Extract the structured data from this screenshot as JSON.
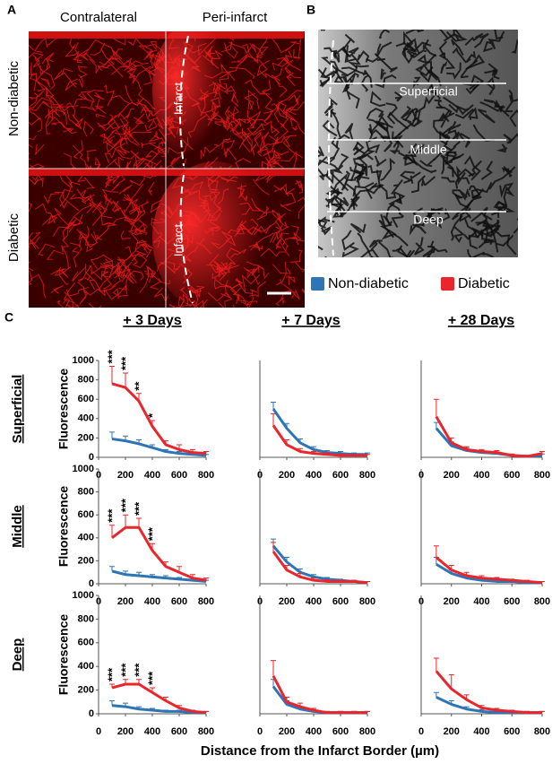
{
  "figure": {
    "panels": [
      "A",
      "B",
      "C"
    ],
    "image_a": {
      "columns": [
        "Contralateral",
        "Peri-infarct"
      ],
      "rows": [
        "Non-diabetic",
        "Diabetic"
      ],
      "infarct_labels": [
        "Infarct",
        "Infarct"
      ]
    },
    "image_b": {
      "layers": [
        "Superficial",
        "Middle",
        "Deep"
      ]
    },
    "columns": [
      "+ 3 Days",
      "+ 7 Days",
      "+ 28 Days"
    ],
    "rows": [
      "Superficial",
      "Middle",
      "Deep"
    ],
    "xlabel": "Distance from the Infarct Border (µm)"
  },
  "chart_data": [
    {
      "type": "line",
      "x": [
        100,
        200,
        300,
        400,
        500,
        600,
        700,
        800
      ],
      "xlim": [
        0,
        800
      ],
      "xticks": [
        0,
        200,
        400,
        600,
        800
      ],
      "ylim": [
        0,
        1000
      ],
      "yticks": [
        0,
        200,
        400,
        600,
        800,
        1000
      ],
      "ylabel": "Fluorescence",
      "series": [
        {
          "name": "Non-diabetic",
          "color": "#2e75b6",
          "values": [
            190,
            170,
            140,
            100,
            60,
            40,
            30,
            20
          ],
          "errors": [
            70,
            50,
            40,
            30,
            20,
            20,
            15,
            10
          ]
        },
        {
          "name": "Diabetic",
          "color": "#e8262b",
          "values": [
            760,
            720,
            580,
            320,
            130,
            80,
            50,
            40
          ],
          "errors": [
            180,
            150,
            80,
            60,
            40,
            50,
            30,
            20
          ]
        }
      ],
      "annotations": [
        {
          "x": 100,
          "text": "***"
        },
        {
          "x": 200,
          "text": "***"
        },
        {
          "x": 300,
          "text": "**"
        },
        {
          "x": 400,
          "text": "*"
        }
      ]
    },
    {
      "type": "line",
      "x": [
        100,
        200,
        300,
        400,
        500,
        600,
        700,
        800
      ],
      "xlim": [
        0,
        800
      ],
      "xticks": [
        0,
        200,
        400,
        600,
        800
      ],
      "ylim": [
        0,
        1000
      ],
      "series": [
        {
          "name": "Non-diabetic",
          "color": "#2e75b6",
          "values": [
            500,
            300,
            150,
            80,
            50,
            40,
            30,
            30
          ],
          "errors": [
            70,
            50,
            40,
            30,
            20,
            20,
            15,
            15
          ]
        },
        {
          "name": "Diabetic",
          "color": "#e8262b",
          "values": [
            330,
            130,
            60,
            40,
            30,
            20,
            20,
            20
          ],
          "errors": [
            120,
            50,
            30,
            20,
            15,
            15,
            10,
            10
          ]
        }
      ]
    },
    {
      "type": "line",
      "x": [
        100,
        200,
        300,
        400,
        500,
        600,
        700,
        800
      ],
      "xlim": [
        0,
        800
      ],
      "xticks": [
        0,
        200,
        400,
        600,
        800
      ],
      "ylim": [
        0,
        1000
      ],
      "series": [
        {
          "name": "Non-diabetic",
          "color": "#2e75b6",
          "values": [
            300,
            120,
            70,
            50,
            40,
            20,
            10,
            20
          ],
          "errors": [
            60,
            40,
            30,
            20,
            15,
            10,
            10,
            15
          ]
        },
        {
          "name": "Diabetic",
          "color": "#e8262b",
          "values": [
            420,
            150,
            80,
            60,
            50,
            20,
            10,
            40
          ],
          "errors": [
            180,
            50,
            30,
            20,
            20,
            15,
            10,
            20
          ]
        }
      ]
    },
    {
      "type": "line",
      "x": [
        100,
        200,
        300,
        400,
        500,
        600,
        700,
        800
      ],
      "xlim": [
        0,
        800
      ],
      "xticks": [
        0,
        200,
        400,
        600,
        800
      ],
      "ylim": [
        0,
        1000
      ],
      "yticks": [
        0,
        200,
        400,
        600,
        800,
        1000
      ],
      "ylabel": "Fluorescence",
      "series": [
        {
          "name": "Non-diabetic",
          "color": "#2e75b6",
          "values": [
            110,
            80,
            70,
            60,
            50,
            40,
            30,
            20
          ],
          "errors": [
            40,
            30,
            30,
            20,
            20,
            15,
            10,
            10
          ]
        },
        {
          "name": "Diabetic",
          "color": "#e8262b",
          "values": [
            400,
            490,
            490,
            290,
            150,
            100,
            50,
            30
          ],
          "errors": [
            110,
            110,
            80,
            60,
            40,
            50,
            30,
            20
          ]
        }
      ],
      "annotations": [
        {
          "x": 100,
          "text": "***"
        },
        {
          "x": 200,
          "text": "***"
        },
        {
          "x": 300,
          "text": "***"
        },
        {
          "x": 400,
          "text": "***"
        }
      ]
    },
    {
      "type": "line",
      "x": [
        100,
        200,
        300,
        400,
        500,
        600,
        700,
        800
      ],
      "xlim": [
        0,
        800
      ],
      "xticks": [
        0,
        200,
        400,
        600,
        800
      ],
      "ylim": [
        0,
        1000
      ],
      "series": [
        {
          "name": "Non-diabetic",
          "color": "#2e75b6",
          "values": [
            330,
            190,
            100,
            60,
            40,
            30,
            20,
            10
          ],
          "errors": [
            60,
            40,
            30,
            20,
            15,
            10,
            10,
            10
          ]
        },
        {
          "name": "Diabetic",
          "color": "#e8262b",
          "values": [
            280,
            120,
            60,
            30,
            20,
            20,
            20,
            10
          ],
          "errors": [
            80,
            40,
            30,
            20,
            15,
            10,
            10,
            10
          ]
        }
      ]
    },
    {
      "type": "line",
      "x": [
        100,
        200,
        300,
        400,
        500,
        600,
        700,
        800
      ],
      "xlim": [
        0,
        800
      ],
      "xticks": [
        0,
        200,
        400,
        600,
        800
      ],
      "ylim": [
        0,
        1000
      ],
      "series": [
        {
          "name": "Non-diabetic",
          "color": "#2e75b6",
          "values": [
            170,
            90,
            50,
            30,
            20,
            20,
            10,
            10
          ],
          "errors": [
            60,
            30,
            20,
            15,
            10,
            10,
            10,
            10
          ]
        },
        {
          "name": "Diabetic",
          "color": "#e8262b",
          "values": [
            230,
            120,
            70,
            50,
            40,
            30,
            20,
            10
          ],
          "errors": [
            100,
            40,
            30,
            20,
            15,
            10,
            10,
            10
          ]
        }
      ]
    },
    {
      "type": "line",
      "x": [
        100,
        200,
        300,
        400,
        500,
        600,
        700,
        800
      ],
      "xlim": [
        0,
        800
      ],
      "xticks": [
        0,
        200,
        400,
        600,
        800
      ],
      "ylim": [
        0,
        1000
      ],
      "yticks": [
        0,
        200,
        400,
        600,
        800,
        1000
      ],
      "ylabel": "Fluorescence",
      "series": [
        {
          "name": "Non-diabetic",
          "color": "#2e75b6",
          "values": [
            70,
            60,
            40,
            30,
            20,
            20,
            10,
            10
          ],
          "errors": [
            40,
            30,
            20,
            15,
            10,
            10,
            10,
            10
          ]
        },
        {
          "name": "Diabetic",
          "color": "#e8262b",
          "values": [
            220,
            250,
            250,
            180,
            110,
            50,
            20,
            10
          ],
          "errors": [
            30,
            40,
            40,
            40,
            30,
            20,
            10,
            10
          ]
        }
      ],
      "annotations": [
        {
          "x": 100,
          "text": "***"
        },
        {
          "x": 200,
          "text": "***"
        },
        {
          "x": 300,
          "text": "***"
        },
        {
          "x": 400,
          "text": "***"
        }
      ]
    },
    {
      "type": "line",
      "x": [
        100,
        200,
        300,
        400,
        500,
        600,
        700,
        800
      ],
      "xlim": [
        0,
        800
      ],
      "xticks": [
        0,
        200,
        400,
        600,
        800
      ],
      "ylim": [
        0,
        1000
      ],
      "series": [
        {
          "name": "Non-diabetic",
          "color": "#2e75b6",
          "values": [
            230,
            80,
            40,
            20,
            10,
            10,
            10,
            10
          ],
          "errors": [
            60,
            30,
            20,
            15,
            10,
            10,
            10,
            10
          ]
        },
        {
          "name": "Diabetic",
          "color": "#e8262b",
          "values": [
            320,
            100,
            60,
            30,
            10,
            10,
            10,
            10
          ],
          "errors": [
            130,
            40,
            30,
            15,
            10,
            10,
            10,
            10
          ]
        }
      ]
    },
    {
      "type": "line",
      "x": [
        100,
        200,
        300,
        400,
        500,
        600,
        700,
        800
      ],
      "xlim": [
        0,
        800
      ],
      "xticks": [
        0,
        200,
        400,
        600,
        800
      ],
      "ylim": [
        0,
        1000
      ],
      "series": [
        {
          "name": "Non-diabetic",
          "color": "#2e75b6",
          "values": [
            140,
            80,
            40,
            20,
            10,
            10,
            10,
            10
          ],
          "errors": [
            40,
            30,
            20,
            15,
            10,
            10,
            10,
            10
          ]
        },
        {
          "name": "Diabetic",
          "color": "#e8262b",
          "values": [
            360,
            210,
            120,
            50,
            30,
            20,
            10,
            10
          ],
          "errors": [
            110,
            120,
            40,
            20,
            15,
            10,
            10,
            10
          ]
        }
      ]
    }
  ]
}
